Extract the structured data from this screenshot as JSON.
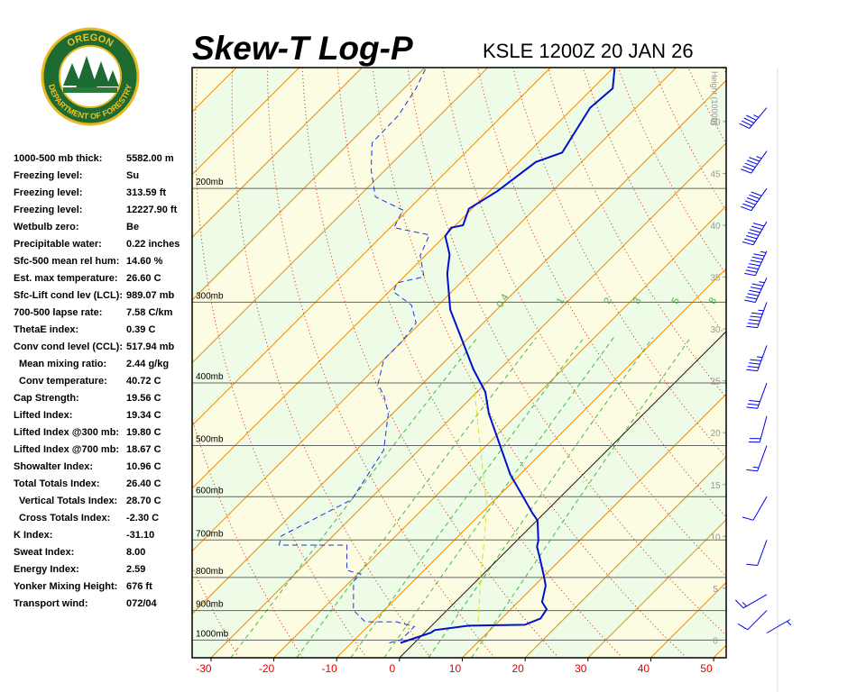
{
  "logo": {
    "top": "OREGON",
    "bottom": "DEPARTMENT OF FORESTRY"
  },
  "stats": [
    {
      "label": "1000-500 mb thick:",
      "value": "5582.00 m"
    },
    {
      "label": "Freezing level:",
      "value": "Su"
    },
    {
      "label": "Freezing level:",
      "value": "313.59 ft"
    },
    {
      "label": "Freezing level:",
      "value": "12227.90 ft"
    },
    {
      "label": "Wetbulb zero:",
      "value": "Be"
    },
    {
      "label": "Precipitable water:",
      "value": "0.22 inches"
    },
    {
      "label": "Sfc-500 mean rel hum:",
      "value": "14.60 %"
    },
    {
      "label": "Est. max temperature:",
      "value": "26.60 C"
    },
    {
      "label": "Sfc-Lift cond lev (LCL):",
      "value": "989.07 mb"
    },
    {
      "label": "700-500 lapse rate:",
      "value": "7.58 C/km"
    },
    {
      "label": "ThetaE index:",
      "value": "0.39 C"
    },
    {
      "label": "Conv cond level (CCL):",
      "value": "517.94 mb"
    },
    {
      "label": "Mean mixing ratio:",
      "value": "2.44 g/kg"
    },
    {
      "label": "Conv temperature:",
      "value": "40.72 C"
    },
    {
      "label": "Cap Strength:",
      "value": "19.56 C"
    },
    {
      "label": "Lifted Index:",
      "value": "19.34 C"
    },
    {
      "label": "Lifted Index @300 mb:",
      "value": "19.80 C"
    },
    {
      "label": "Lifted Index @700 mb:",
      "value": "18.67 C"
    },
    {
      "label": "Showalter Index:",
      "value": "10.96 C"
    },
    {
      "label": "Total Totals Index:",
      "value": "26.40 C"
    },
    {
      "label": "Vertical Totals Index:",
      "value": "28.70 C"
    },
    {
      "label": "Cross Totals Index:",
      "value": "-2.30 C"
    },
    {
      "label": "K Index:",
      "value": "-31.10"
    },
    {
      "label": "Sweat Index:",
      "value": "8.00"
    },
    {
      "label": "Energy Index:",
      "value": "2.59"
    },
    {
      "label": "Yonker Mixing Height:",
      "value": "676 ft"
    },
    {
      "label": "Transport wind:",
      "value": "072/04"
    }
  ],
  "chart_data": {
    "type": "skew-t",
    "title": "Skew-T Log-P",
    "subtitle": "KSLE 1200Z 20 JAN 26",
    "xlim": [
      -33,
      52
    ],
    "xticks": [
      -30,
      -20,
      -10,
      0,
      10,
      20,
      30,
      40,
      50
    ],
    "ylim": [
      1065,
      130
    ],
    "ylog": true,
    "yticks": [
      {
        "value": 1000,
        "label": "1000mb"
      },
      {
        "value": 900,
        "label": "900mb"
      },
      {
        "value": 800,
        "label": "800mb"
      },
      {
        "value": 700,
        "label": "700mb"
      },
      {
        "value": 600,
        "label": "600mb"
      },
      {
        "value": 500,
        "label": "500mb"
      },
      {
        "value": 400,
        "label": "400mb"
      },
      {
        "value": 300,
        "label": "300mb"
      },
      {
        "value": 200,
        "label": "200mb"
      }
    ],
    "y2label": "Height (1000ft)",
    "y2lim": [
      -1.7,
      55.2
    ],
    "y2ticks": [
      0,
      5,
      10,
      15,
      20,
      25,
      30,
      35,
      40,
      45,
      50
    ],
    "grid": true,
    "band_colors": [
      "#eefbe6",
      "#fcfce2"
    ],
    "isotherms": {
      "step": 10,
      "color": "#f08a00"
    },
    "dry_adiabats": {
      "step": 10,
      "color": "#cc2a00"
    },
    "freezing_isotherm": {
      "value": 0,
      "color": "#000000"
    },
    "mixing_ratios": {
      "values": [
        0.4,
        1,
        2,
        3,
        5,
        8
      ],
      "color": "#44bb44"
    },
    "series": [
      {
        "color": "#0010cc",
        "style": "solid",
        "pressure": [
          1010,
          974,
          965,
          950,
          947,
          926,
          896,
          873,
          824,
          798,
          743,
          717,
          701,
          653,
          636,
          554,
          446,
          413,
          381,
          308,
          271,
          253,
          237,
          230,
          228,
          215,
          202,
          182,
          176,
          150,
          140,
          129
        ],
        "values": [
          -2.2,
          1.0,
          1.2,
          5.9,
          14.7,
          16.2,
          15.7,
          13.8,
          11.8,
          10.1,
          6.2,
          4.2,
          3.4,
          0.1,
          -1.9,
          -11.6,
          -24.7,
          -28.7,
          -34.2,
          -47.4,
          -53.6,
          -56.3,
          -59.9,
          -60.3,
          -58.8,
          -60.5,
          -58.8,
          -57.3,
          -54.6,
          -57.3,
          -56.8,
          -60.1
        ]
      },
      {
        "color": "#2233dd",
        "style": "dashed",
        "pressure": [
          1010,
          1000,
          968,
          953,
          937,
          937,
          899,
          811,
          790,
          780,
          713,
          713,
          690,
          606,
          508,
          446,
          418,
          402,
          368,
          345,
          323,
          303,
          289,
          280,
          274,
          254,
          236,
          230,
          216,
          206,
          187,
          170,
          154,
          140,
          130
        ],
        "values": [
          -4.0,
          -2.6,
          -2.6,
          -2.6,
          -6.2,
          -11.2,
          -14.9,
          -19.5,
          -19.5,
          -22.3,
          -26.3,
          -37.1,
          -38.2,
          -32.8,
          -35.6,
          -40.7,
          -44.3,
          -47.0,
          -50.0,
          -50.0,
          -50.7,
          -54.3,
          -59.3,
          -60.1,
          -56.8,
          -60.8,
          -62.6,
          -69.4,
          -70.8,
          -77.3,
          -82.3,
          -86.4,
          -86.6,
          -88.1,
          -89.8
        ]
      },
      {
        "color": "#e0e020",
        "style": "dashed",
        "pressure": [
          937,
          798,
          701,
          617,
          542,
          446,
          405
        ],
        "values": [
          6.8,
          0,
          -5.2,
          -10.5,
          -17.0,
          -26.6,
          -31.3
        ]
      }
    ],
    "winds": {
      "pressure": [
        975,
        900,
        850,
        700,
        600,
        500,
        450,
        400,
        350,
        300,
        275,
        250,
        225,
        200,
        175,
        150
      ],
      "direction": [
        60,
        225,
        240,
        200,
        210,
        200,
        195,
        200,
        200,
        200,
        205,
        205,
        210,
        215,
        215,
        220
      ],
      "speed": [
        5,
        10,
        15,
        10,
        10,
        15,
        20,
        30,
        45,
        55,
        65,
        75,
        70,
        60,
        55,
        45
      ],
      "color": "#0000ee"
    }
  }
}
